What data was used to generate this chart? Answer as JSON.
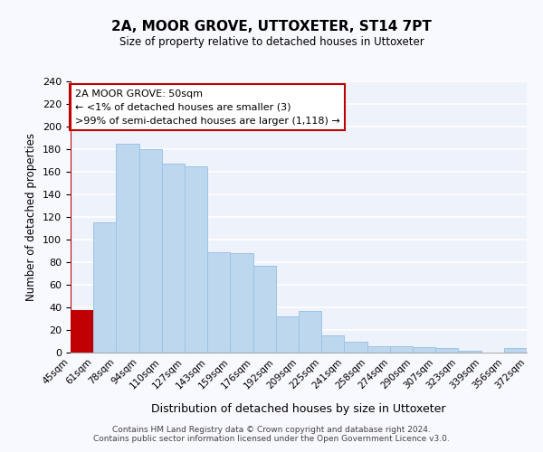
{
  "title": "2A, MOOR GROVE, UTTOXETER, ST14 7PT",
  "subtitle": "Size of property relative to detached houses in Uttoxeter",
  "xlabel": "Distribution of detached houses by size in Uttoxeter",
  "ylabel": "Number of detached properties",
  "bin_labels": [
    "45sqm",
    "61sqm",
    "78sqm",
    "94sqm",
    "110sqm",
    "127sqm",
    "143sqm",
    "159sqm",
    "176sqm",
    "192sqm",
    "209sqm",
    "225sqm",
    "241sqm",
    "258sqm",
    "274sqm",
    "290sqm",
    "307sqm",
    "323sqm",
    "339sqm",
    "356sqm",
    "372sqm"
  ],
  "bar_heights": [
    38,
    115,
    185,
    180,
    167,
    165,
    89,
    88,
    77,
    32,
    37,
    15,
    10,
    6,
    6,
    5,
    4,
    2,
    0,
    4
  ],
  "bar_color": "#bdd7ee",
  "bar_edge_color": "#9dc3e6",
  "first_bar_color": "#c00000",
  "first_bar_edge_color": "#c00000",
  "ylim": [
    0,
    240
  ],
  "yticks": [
    0,
    20,
    40,
    60,
    80,
    100,
    120,
    140,
    160,
    180,
    200,
    220,
    240
  ],
  "annotation_text": "2A MOOR GROVE: 50sqm\n← <1% of detached houses are smaller (3)\n>99% of semi-detached houses are larger (1,118) →",
  "annotation_box_edge": "#c00000",
  "red_line_color": "#c00000",
  "footer": "Contains HM Land Registry data © Crown copyright and database right 2024.\nContains public sector information licensed under the Open Government Licence v3.0.",
  "bg_color": "#eef2fa",
  "grid_color": "#ffffff",
  "fig_bg_color": "#f8f8ff"
}
